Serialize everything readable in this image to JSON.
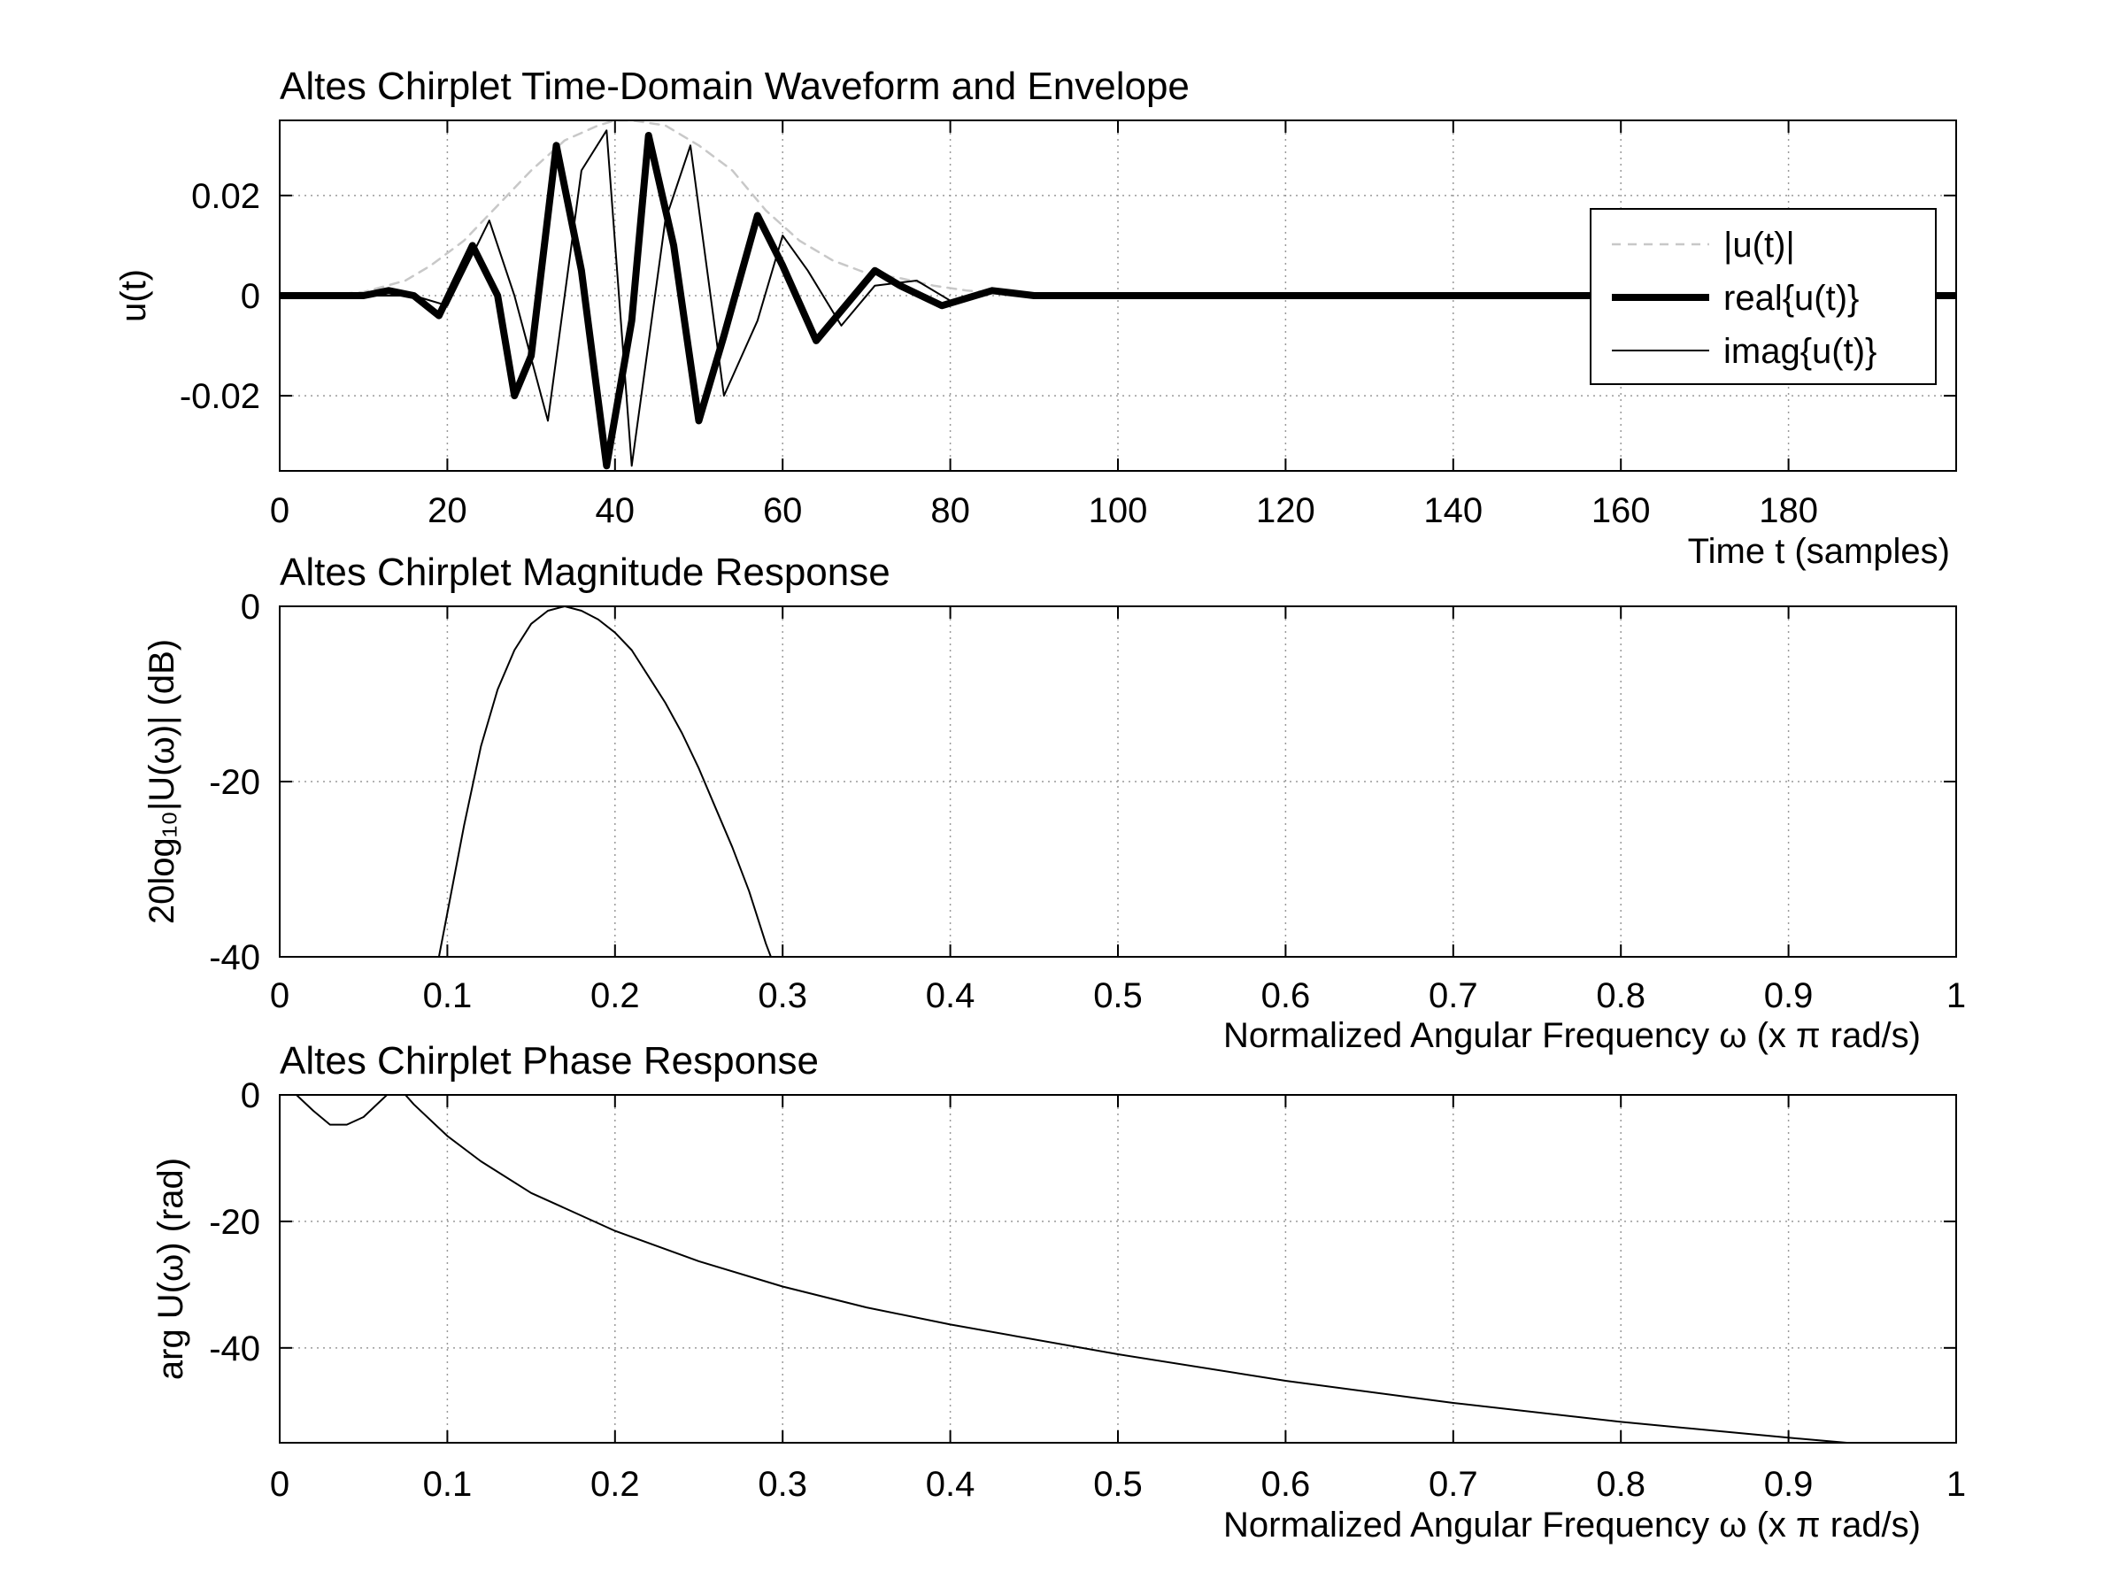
{
  "chart_data": [
    {
      "type": "line",
      "title": "Altes Chirplet Time-Domain Waveform and Envelope",
      "xlabel": "Time t (samples)",
      "ylabel": "u(t)",
      "xlim": [
        0,
        200
      ],
      "ylim": [
        -0.035,
        0.035
      ],
      "grid": true,
      "xticks": [
        0,
        20,
        40,
        60,
        80,
        100,
        120,
        140,
        160,
        180
      ],
      "xtick_labels": [
        "0",
        "20",
        "40",
        "60",
        "80",
        "100",
        "120",
        "140",
        "160",
        "180"
      ],
      "yticks": [
        -0.02,
        0,
        0.02
      ],
      "ytick_labels": [
        "-0.02",
        "0",
        "0.02"
      ],
      "legend_position": "right",
      "series": [
        {
          "name": "|u(t)|",
          "style": "dashed",
          "color": "#c8c8c8",
          "x": [
            0,
            5,
            10,
            15,
            18,
            22,
            26,
            30,
            34,
            38,
            40,
            42,
            46,
            50,
            54,
            58,
            62,
            66,
            70,
            74,
            78,
            82,
            86,
            90,
            95,
            100,
            120,
            140,
            160,
            180,
            200
          ],
          "y": [
            0.0,
            0.0001,
            0.0007,
            0.003,
            0.006,
            0.011,
            0.018,
            0.025,
            0.031,
            0.034,
            0.035,
            0.035,
            0.034,
            0.03,
            0.025,
            0.017,
            0.011,
            0.007,
            0.0045,
            0.0035,
            0.002,
            0.001,
            0.0005,
            0.0002,
            0.0001,
            0.0,
            0.0,
            0.0,
            0.0,
            0.0,
            0.0
          ]
        },
        {
          "name": "real{u(t)}",
          "style": "thick",
          "color": "#000000",
          "x": [
            0,
            10,
            13,
            16,
            19,
            23,
            26,
            28,
            30,
            33,
            36,
            39,
            42,
            44,
            47,
            50,
            53,
            57,
            60,
            64,
            67,
            71,
            74,
            79,
            85,
            90,
            100,
            200
          ],
          "y": [
            0,
            0,
            0.001,
            0.0,
            -0.004,
            0.01,
            0.0,
            -0.02,
            -0.012,
            0.03,
            0.005,
            -0.034,
            -0.005,
            0.032,
            0.01,
            -0.025,
            -0.008,
            0.016,
            0.006,
            -0.009,
            -0.003,
            0.005,
            0.002,
            -0.002,
            0.001,
            0,
            0,
            0
          ]
        },
        {
          "name": "imag{u(t)}",
          "style": "thin",
          "color": "#000000",
          "x": [
            0,
            10,
            16,
            20,
            25,
            28,
            32,
            36,
            39,
            42,
            46,
            49,
            53,
            57,
            60,
            63,
            67,
            71,
            76,
            80,
            86,
            90,
            100,
            200
          ],
          "y": [
            0,
            0,
            0.0,
            -0.002,
            0.015,
            0.0,
            -0.025,
            0.025,
            0.033,
            -0.034,
            0.015,
            0.03,
            -0.02,
            -0.005,
            0.012,
            0.005,
            -0.006,
            0.002,
            0.003,
            -0.001,
            0.001,
            0,
            0,
            0
          ]
        }
      ]
    },
    {
      "type": "line",
      "title": "Altes Chirplet Magnitude Response",
      "xlabel": "Normalized Angular Frequency  ω (x π rad/s)",
      "ylabel": "20log₁₀|U(ω)| (dB)",
      "xlim": [
        0,
        1
      ],
      "ylim": [
        -40,
        0
      ],
      "grid": true,
      "xticks": [
        0,
        0.1,
        0.2,
        0.3,
        0.4,
        0.5,
        0.6,
        0.7,
        0.8,
        0.9,
        1
      ],
      "xtick_labels": [
        "0",
        "0.1",
        "0.2",
        "0.3",
        "0.4",
        "0.5",
        "0.6",
        "0.7",
        "0.8",
        "0.9",
        "1"
      ],
      "yticks": [
        -40,
        -20,
        0
      ],
      "ytick_labels": [
        "-40",
        "-20",
        "0"
      ],
      "series": [
        {
          "name": "magnitude",
          "color": "#000000",
          "x": [
            0.095,
            0.1,
            0.11,
            0.12,
            0.13,
            0.14,
            0.15,
            0.16,
            0.17,
            0.18,
            0.19,
            0.2,
            0.21,
            0.22,
            0.23,
            0.24,
            0.25,
            0.26,
            0.27,
            0.28,
            0.29,
            0.293
          ],
          "y": [
            -40,
            -35,
            -25,
            -16,
            -9.5,
            -5,
            -2,
            -0.5,
            0,
            -0.5,
            -1.5,
            -3,
            -5,
            -8,
            -11,
            -14.5,
            -18.5,
            -23,
            -27.5,
            -32.5,
            -38.5,
            -40
          ]
        }
      ]
    },
    {
      "type": "line",
      "title": "Altes Chirplet Phase Response",
      "xlabel": "Normalized Angular Frequency  ω (x π rad/s)",
      "ylabel": "arg U(ω) (rad)",
      "xlim": [
        0,
        1
      ],
      "ylim": [
        -55,
        0
      ],
      "grid": true,
      "xticks": [
        0,
        0.1,
        0.2,
        0.3,
        0.4,
        0.5,
        0.6,
        0.7,
        0.8,
        0.9,
        1
      ],
      "xtick_labels": [
        "0",
        "0.1",
        "0.2",
        "0.3",
        "0.4",
        "0.5",
        "0.6",
        "0.7",
        "0.8",
        "0.9",
        "1"
      ],
      "yticks": [
        -40,
        -20,
        0
      ],
      "ytick_labels": [
        "-40",
        "-20",
        "0"
      ],
      "series": [
        {
          "name": "phase",
          "color": "#000000",
          "x": [
            0.0,
            0.01,
            0.02,
            0.03,
            0.04,
            0.05,
            0.06,
            0.07,
            0.08,
            0.1,
            0.12,
            0.15,
            0.2,
            0.25,
            0.3,
            0.35,
            0.4,
            0.5,
            0.6,
            0.7,
            0.8,
            0.9,
            1.0
          ],
          "y": [
            0,
            0,
            -2.5,
            -4.7,
            -4.7,
            -3.5,
            -1.0,
            1.5,
            -1.5,
            -6.5,
            -10.5,
            -15.5,
            -21.5,
            -26.3,
            -30.3,
            -33.6,
            -36.3,
            -41.0,
            -45.2,
            -48.7,
            -51.7,
            -54.2,
            -56.5
          ]
        }
      ]
    }
  ]
}
